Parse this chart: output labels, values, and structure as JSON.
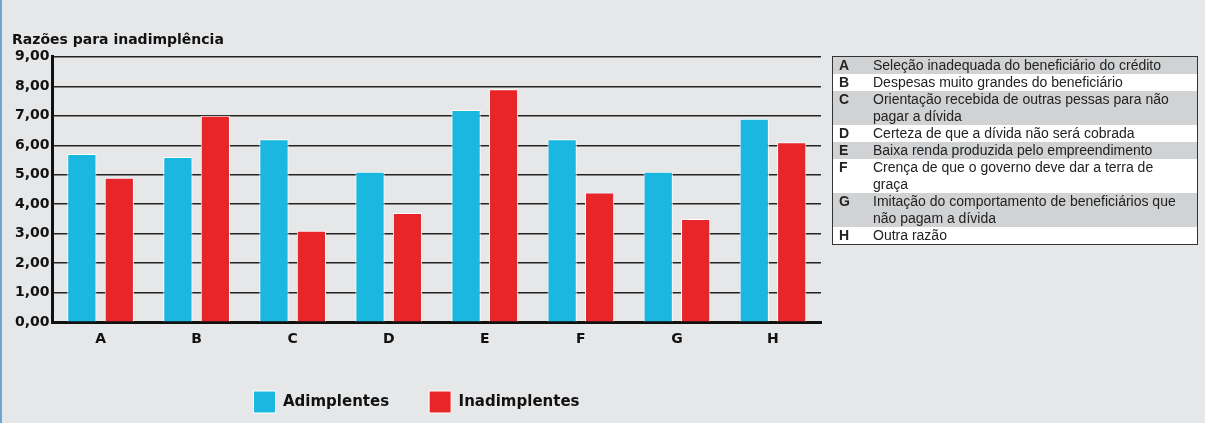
{
  "chart_data": {
    "type": "bar",
    "title": "Razões para inadimplência",
    "categories": [
      "A",
      "B",
      "C",
      "D",
      "E",
      "F",
      "G",
      "H"
    ],
    "series": [
      {
        "name": "Adimplentes",
        "color": "#1ab8e0",
        "values": [
          5.7,
          5.6,
          6.2,
          5.1,
          7.2,
          6.2,
          5.1,
          6.9
        ]
      },
      {
        "name": "Inadimplentes",
        "color": "#e8262a",
        "values": [
          4.9,
          7.0,
          3.1,
          3.7,
          7.9,
          4.4,
          3.5,
          6.1
        ]
      }
    ],
    "ylim": [
      0,
      9
    ],
    "yticks": [
      {
        "value": 0,
        "label": "0,00"
      },
      {
        "value": 1,
        "label": "1,00"
      },
      {
        "value": 2,
        "label": "2,00"
      },
      {
        "value": 3,
        "label": "3,00"
      },
      {
        "value": 4,
        "label": "4,00"
      },
      {
        "value": 5,
        "label": "5,00"
      },
      {
        "value": 6,
        "label": "6,00"
      },
      {
        "value": 7,
        "label": "7,00"
      },
      {
        "value": 8,
        "label": "8,00"
      },
      {
        "value": 9,
        "label": "9,00"
      }
    ],
    "grid": "y",
    "legend": "bottom",
    "annotations": [
      "Seleção inadequada do beneficiário do crédito",
      "Despesas muito grandes do beneficiário",
      "Orientação recebida de outras pessas para não pagar a dívida",
      "Certeza de que a dívida não será cobrada",
      "Baixa renda produzida pelo empreendimento",
      "Crença de que o governo deve dar a terra de graça",
      "Imitação do comportamento de beneficiários que não pagam a dívida",
      "Outra razão"
    ]
  }
}
